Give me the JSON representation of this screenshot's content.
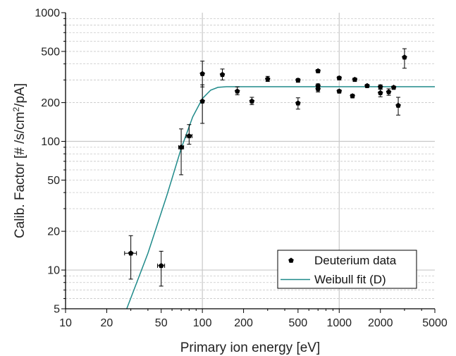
{
  "chart_data": {
    "type": "scatter",
    "xlabel": "Primary ion energy [eV]",
    "ylabel_parts": {
      "before": "Calib. Factor [# /s/cm",
      "sup": "2",
      "after": "/pA]"
    },
    "xscale": "log",
    "yscale": "log",
    "xlim": [
      10,
      5000
    ],
    "ylim": [
      5,
      1000
    ],
    "x_ticks": [
      10,
      20,
      50,
      100,
      200,
      500,
      1000,
      2000,
      5000
    ],
    "y_ticks": [
      5,
      10,
      20,
      50,
      100,
      200,
      500,
      1000
    ],
    "grid": "minor dashed horizontal lines; solid gray lines at x=100, x=1000, y=10, y=100",
    "legend_position": "bottom-right",
    "legend": [
      "Deuterium data",
      "Weibull fit (D)"
    ],
    "colors": {
      "data": "#000000",
      "fit": "#1f8a8a",
      "grid": "#c8c8c8",
      "axis": "#000000"
    },
    "series": [
      {
        "name": "Deuterium data",
        "type": "scatter",
        "points": [
          {
            "x": 30,
            "y": 13.5,
            "ylo": 8.5,
            "yhi": 18.5,
            "xlo": 27,
            "xhi": 33
          },
          {
            "x": 50,
            "y": 10.8,
            "ylo": 7.5,
            "yhi": 14,
            "xlo": 47,
            "xhi": 53
          },
          {
            "x": 70,
            "y": 90,
            "ylo": 55,
            "yhi": 125,
            "xlo": 67,
            "xhi": 73
          },
          {
            "x": 80,
            "y": 110,
            "ylo": 95,
            "yhi": 135,
            "xlo": 76,
            "xhi": 84
          },
          {
            "x": 100,
            "y": 335,
            "ylo": 265,
            "yhi": 420
          },
          {
            "x": 100,
            "y": 205,
            "ylo": 138,
            "yhi": 275
          },
          {
            "x": 140,
            "y": 330,
            "ylo": 300,
            "yhi": 365
          },
          {
            "x": 180,
            "y": 245,
            "ylo": 230,
            "yhi": 265
          },
          {
            "x": 230,
            "y": 205,
            "ylo": 193,
            "yhi": 220
          },
          {
            "x": 300,
            "y": 305,
            "ylo": 292,
            "yhi": 320
          },
          {
            "x": 500,
            "y": 298,
            "ylo": 288,
            "yhi": 308
          },
          {
            "x": 500,
            "y": 198,
            "ylo": 178,
            "yhi": 218
          },
          {
            "x": 700,
            "y": 352,
            "ylo": 343,
            "yhi": 362
          },
          {
            "x": 700,
            "y": 255,
            "ylo": 242,
            "yhi": 268
          },
          {
            "x": 700,
            "y": 270,
            "ylo": 262,
            "yhi": 280
          },
          {
            "x": 1000,
            "y": 310,
            "ylo": 300,
            "yhi": 320
          },
          {
            "x": 1000,
            "y": 245,
            "ylo": 238,
            "yhi": 252
          },
          {
            "x": 1300,
            "y": 302,
            "ylo": 293,
            "yhi": 311
          },
          {
            "x": 1250,
            "y": 225,
            "ylo": 218,
            "yhi": 232
          },
          {
            "x": 1600,
            "y": 270,
            "ylo": 263,
            "yhi": 277
          },
          {
            "x": 2000,
            "y": 265,
            "ylo": 255,
            "yhi": 275
          },
          {
            "x": 2000,
            "y": 238,
            "ylo": 222,
            "yhi": 254
          },
          {
            "x": 2300,
            "y": 242,
            "ylo": 228,
            "yhi": 256
          },
          {
            "x": 2500,
            "y": 262,
            "ylo": 255,
            "yhi": 269
          },
          {
            "x": 2700,
            "y": 190,
            "ylo": 160,
            "yhi": 220
          },
          {
            "x": 3000,
            "y": 450,
            "ylo": 370,
            "yhi": 525
          }
        ]
      },
      {
        "name": "Weibull fit (D)",
        "type": "line",
        "points": [
          {
            "x": 28,
            "y": 5
          },
          {
            "x": 40,
            "y": 13.5
          },
          {
            "x": 55,
            "y": 38
          },
          {
            "x": 70,
            "y": 88
          },
          {
            "x": 85,
            "y": 155
          },
          {
            "x": 100,
            "y": 215
          },
          {
            "x": 115,
            "y": 250
          },
          {
            "x": 130,
            "y": 263
          },
          {
            "x": 150,
            "y": 266
          },
          {
            "x": 200,
            "y": 266
          },
          {
            "x": 500,
            "y": 266
          },
          {
            "x": 1000,
            "y": 266
          },
          {
            "x": 5000,
            "y": 266
          }
        ]
      }
    ]
  }
}
